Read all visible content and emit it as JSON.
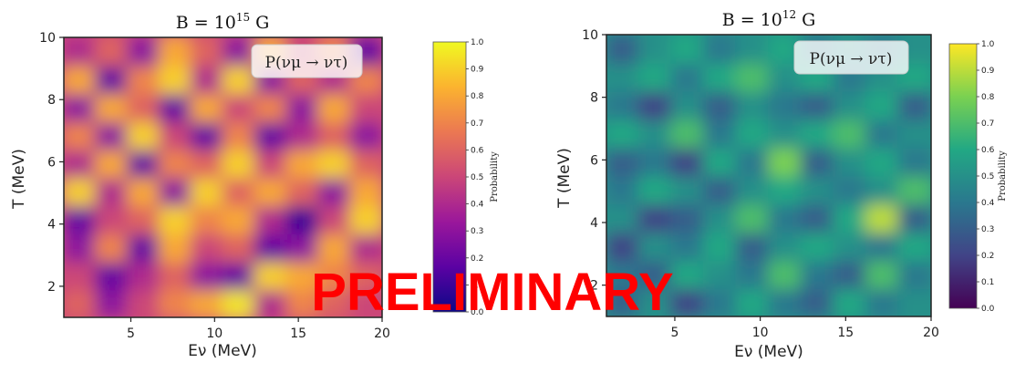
{
  "watermark": "PRELIMINARY",
  "colors": {
    "plasma": [
      "#0d0887",
      "#5b02a3",
      "#9a179b",
      "#cb4678",
      "#eb7852",
      "#fbb32f",
      "#f0f921"
    ],
    "viridis": [
      "#440154",
      "#414487",
      "#2a788e",
      "#22a884",
      "#7ad151",
      "#fde725"
    ]
  },
  "chart_data": [
    {
      "type": "heatmap",
      "title_prefix": "B = 10",
      "title_exp": "15",
      "title_unit": "G",
      "legend": "P(νμ → ντ)",
      "xlabel": "Eν (MeV)",
      "ylabel": "T (MeV)",
      "xlim": [
        1,
        20
      ],
      "ylim": [
        1,
        10
      ],
      "xticks": [
        5,
        10,
        15,
        20
      ],
      "yticks": [
        2,
        4,
        6,
        8,
        10
      ],
      "colorbar_label": "Probability",
      "colorbar_ticks": [
        0.0,
        0.1,
        0.2,
        0.3,
        0.4,
        0.5,
        0.6,
        0.7,
        0.8,
        0.9,
        1.0
      ],
      "colorbar_tick_labels": [
        "0.0",
        "0.1",
        "0.2",
        "0.3",
        "0.4",
        "0.5",
        "0.6",
        "0.7",
        "0.8",
        "0.9",
        "1.0"
      ],
      "colormap": "plasma",
      "x": [
        1,
        3,
        5,
        7,
        9,
        11,
        13,
        15,
        17,
        19
      ],
      "y": [
        1,
        2,
        3,
        4,
        5,
        6,
        7,
        8,
        9,
        10
      ],
      "z": [
        [
          0.6,
          0.3,
          0.5,
          0.7,
          0.8,
          0.95,
          0.4,
          0.7,
          0.6,
          0.5
        ],
        [
          0.5,
          0.2,
          0.4,
          0.6,
          0.3,
          0.2,
          0.9,
          0.8,
          0.7,
          0.6
        ],
        [
          0.3,
          0.7,
          0.2,
          0.8,
          0.5,
          0.6,
          0.2,
          0.3,
          0.8,
          0.4
        ],
        [
          0.2,
          0.5,
          0.6,
          0.9,
          0.7,
          0.8,
          0.4,
          0.1,
          0.5,
          0.9
        ],
        [
          0.9,
          0.4,
          0.8,
          0.3,
          0.9,
          0.6,
          0.8,
          0.6,
          0.3,
          0.8
        ],
        [
          0.4,
          0.8,
          0.2,
          0.7,
          0.6,
          0.9,
          0.5,
          0.8,
          0.9,
          0.6
        ],
        [
          0.7,
          0.3,
          0.9,
          0.5,
          0.2,
          0.7,
          0.2,
          0.4,
          0.6,
          0.3
        ],
        [
          0.3,
          0.8,
          0.6,
          0.2,
          0.8,
          0.5,
          0.7,
          0.3,
          0.8,
          0.5
        ],
        [
          0.8,
          0.2,
          0.7,
          0.9,
          0.4,
          0.9,
          0.3,
          0.6,
          0.4,
          0.7
        ],
        [
          0.4,
          0.6,
          0.3,
          0.8,
          0.6,
          0.3,
          0.8,
          0.5,
          0.7,
          0.2
        ]
      ]
    },
    {
      "type": "heatmap",
      "title_prefix": "B = 10",
      "title_exp": "12",
      "title_unit": "G",
      "legend": "P(νμ → ντ)",
      "xlabel": "Eν (MeV)",
      "ylabel": "T (MeV)",
      "xlim": [
        1,
        20
      ],
      "ylim": [
        1,
        10
      ],
      "xticks": [
        5,
        10,
        15,
        20
      ],
      "yticks": [
        2,
        4,
        6,
        8,
        10
      ],
      "colorbar_label": "Probability",
      "colorbar_ticks": [
        0.0,
        0.1,
        0.2,
        0.3,
        0.4,
        0.5,
        0.6,
        0.7,
        0.8,
        0.9,
        1.0
      ],
      "colorbar_tick_labels": [
        "0.0",
        "0.1",
        "0.2",
        "0.3",
        "0.4",
        "0.5",
        "0.6",
        "0.7",
        "0.8",
        "0.9",
        "1.0"
      ],
      "colormap": "viridis",
      "x": [
        1,
        3,
        5,
        7,
        9,
        11,
        13,
        15,
        17,
        19
      ],
      "y": [
        1,
        2,
        3,
        4,
        5,
        6,
        7,
        8,
        9,
        10
      ],
      "z": [
        [
          0.3,
          0.5,
          0.2,
          0.4,
          0.6,
          0.4,
          0.3,
          0.6,
          0.4,
          0.5
        ],
        [
          0.4,
          0.3,
          0.6,
          0.5,
          0.4,
          0.7,
          0.4,
          0.3,
          0.7,
          0.4
        ],
        [
          0.2,
          0.5,
          0.4,
          0.6,
          0.3,
          0.5,
          0.6,
          0.5,
          0.4,
          0.6
        ],
        [
          0.5,
          0.2,
          0.3,
          0.5,
          0.7,
          0.4,
          0.3,
          0.6,
          0.9,
          0.3
        ],
        [
          0.4,
          0.6,
          0.5,
          0.3,
          0.5,
          0.6,
          0.5,
          0.4,
          0.5,
          0.7
        ],
        [
          0.3,
          0.4,
          0.2,
          0.6,
          0.4,
          0.8,
          0.3,
          0.5,
          0.6,
          0.4
        ],
        [
          0.6,
          0.5,
          0.7,
          0.4,
          0.6,
          0.5,
          0.6,
          0.7,
          0.4,
          0.5
        ],
        [
          0.4,
          0.2,
          0.5,
          0.3,
          0.5,
          0.4,
          0.3,
          0.5,
          0.6,
          0.3
        ],
        [
          0.5,
          0.6,
          0.4,
          0.6,
          0.7,
          0.5,
          0.6,
          0.4,
          0.5,
          0.6
        ],
        [
          0.3,
          0.5,
          0.6,
          0.4,
          0.5,
          0.6,
          0.4,
          0.5,
          0.4,
          0.5
        ]
      ]
    }
  ]
}
